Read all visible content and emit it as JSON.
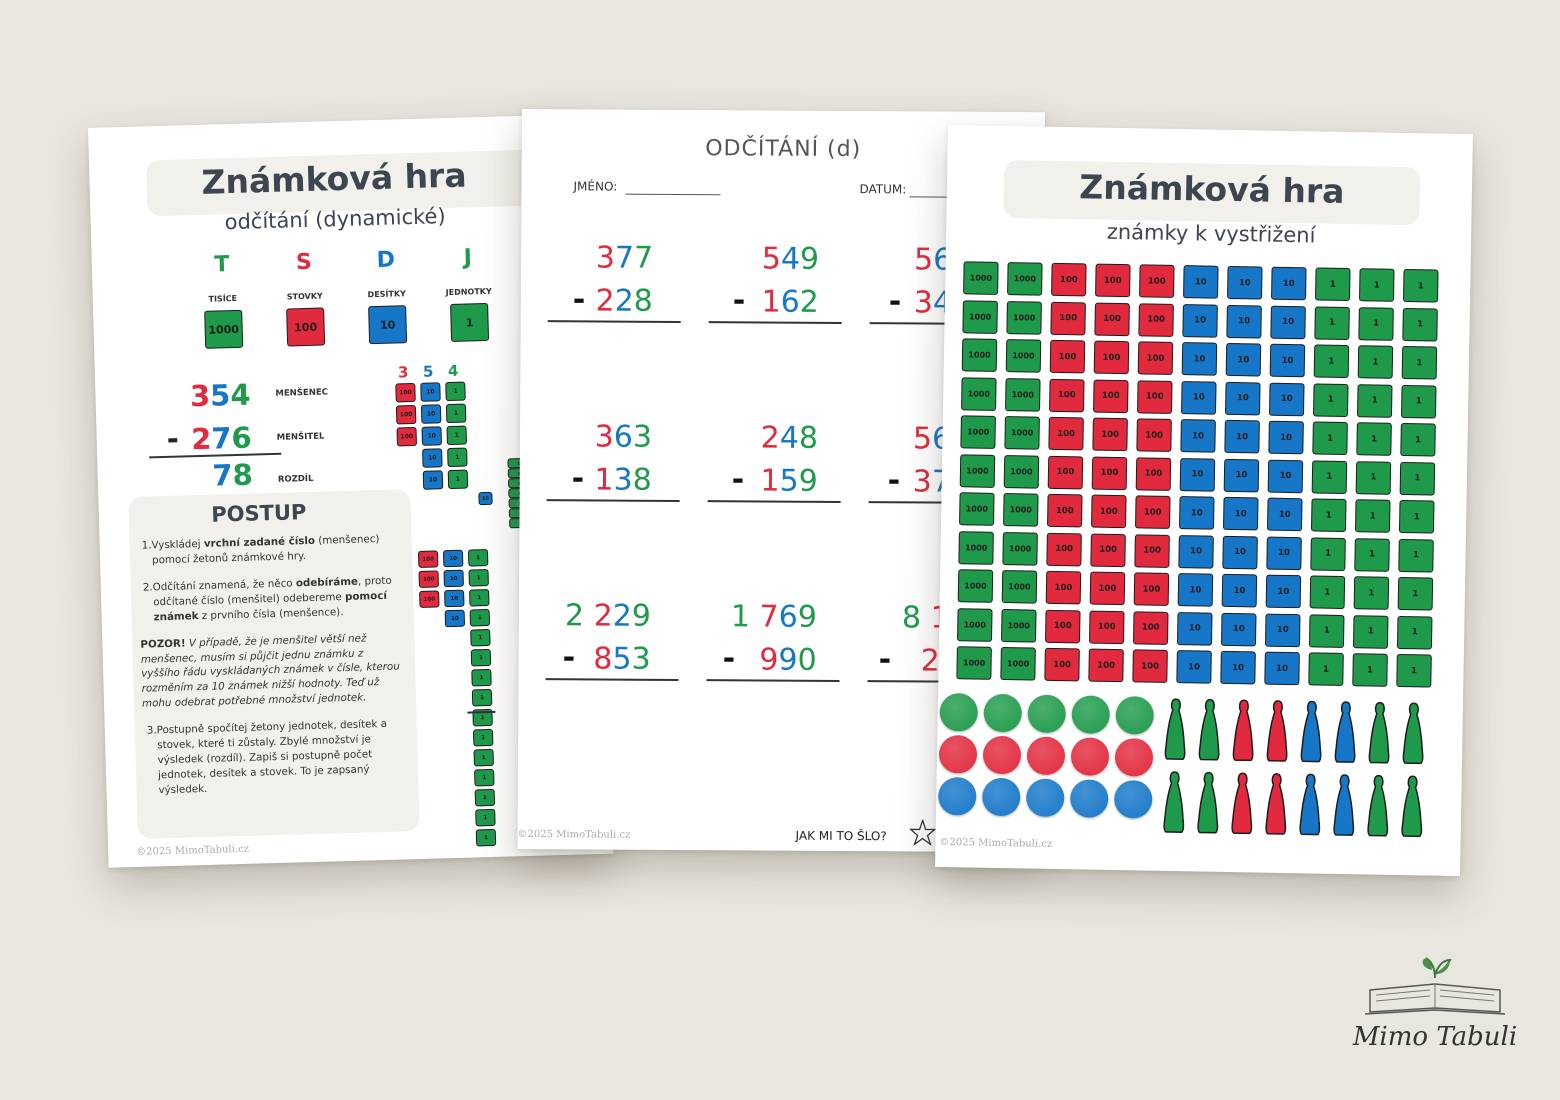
{
  "left_page": {
    "title": "Známková hra",
    "subtitle": "odčítání (dynamické)",
    "places": [
      {
        "letter": "T",
        "name": "TISÍCE",
        "stamp": "1000"
      },
      {
        "letter": "S",
        "name": "STOVKY",
        "stamp": "100"
      },
      {
        "letter": "D",
        "name": "DESÍTKY",
        "stamp": "10"
      },
      {
        "letter": "J",
        "name": "JEDNOTKY",
        "stamp": "1"
      }
    ],
    "example": {
      "minuend": "354",
      "operator": "-",
      "subtrahend": "276",
      "difference": "78",
      "labels": [
        "MENŠENEC",
        "MENŠITEL",
        "ROZDÍL"
      ]
    },
    "diagram_digits": [
      "3",
      "5",
      "4"
    ],
    "procedure": {
      "heading": "POSTUP",
      "steps": [
        {
          "number": "1.",
          "parts": [
            {
              "text": "Vyskládej "
            },
            {
              "text": "vrchní zadané číslo",
              "bold": true
            },
            {
              "text": " (menšenec) pomocí žetonů známkové hry."
            }
          ]
        },
        {
          "number": "2.",
          "parts": [
            {
              "text": "Odčítání znamená, že něco "
            },
            {
              "text": "odebíráme",
              "bold": true
            },
            {
              "text": ", proto odčítané číslo (menšitel) odebereme "
            },
            {
              "text": "pomocí známek",
              "bold": true
            },
            {
              "text": " z prvního čísla (menšence)."
            }
          ]
        },
        {
          "parts": [
            {
              "text": "POZOR!",
              "bold": true
            },
            {
              "text": " V případě, že je menšitel větší než menšenec, musím si půjčit jednu známku z vyššího řádu vyskládaných známek v čísle, kterou rozměním za 10 známek nižší hodnoty. Teď už mohu odebrat potřebné množství jednotek.",
              "italic": true
            }
          ]
        },
        {
          "number": "3.",
          "parts": [
            {
              "text": "Postupně spočítej žetony jednotek, desítek a stovek, které ti zůstaly. Zbylé množství je výsledek (rozdíl). Zapiš si postupně počet jednotek, desítek a stovek. To je zapsaný výsledek."
            }
          ]
        }
      ]
    },
    "footer": "©2025 MimoTabuli.cz"
  },
  "middle_page": {
    "title": "ODČÍTÁNÍ (d)",
    "name_label": "JMÉNO:",
    "date_label": "DATUM:",
    "operator": "-",
    "problems": [
      {
        "top": "377",
        "bottom": "228"
      },
      {
        "top": "549",
        "bottom": "162"
      },
      {
        "top": "56",
        "bottom": "34"
      },
      {
        "top": "363",
        "bottom": "138"
      },
      {
        "top": "248",
        "bottom": "159"
      },
      {
        "top": "56",
        "bottom": "37"
      },
      {
        "top": "2 229",
        "bottom": "853"
      },
      {
        "top": "1 769",
        "bottom": "990"
      },
      {
        "top": "8 1",
        "bottom": "2"
      }
    ],
    "rating_label": "JAK MI TO ŠLO?",
    "footer": "©2025 MimoTabuli.cz"
  },
  "right_page": {
    "title": "Známková hra",
    "subtitle": "známky k vystřižení",
    "footer": "©2025 MimoTabuli.cz"
  },
  "logo": "Mimo Tabuli"
}
